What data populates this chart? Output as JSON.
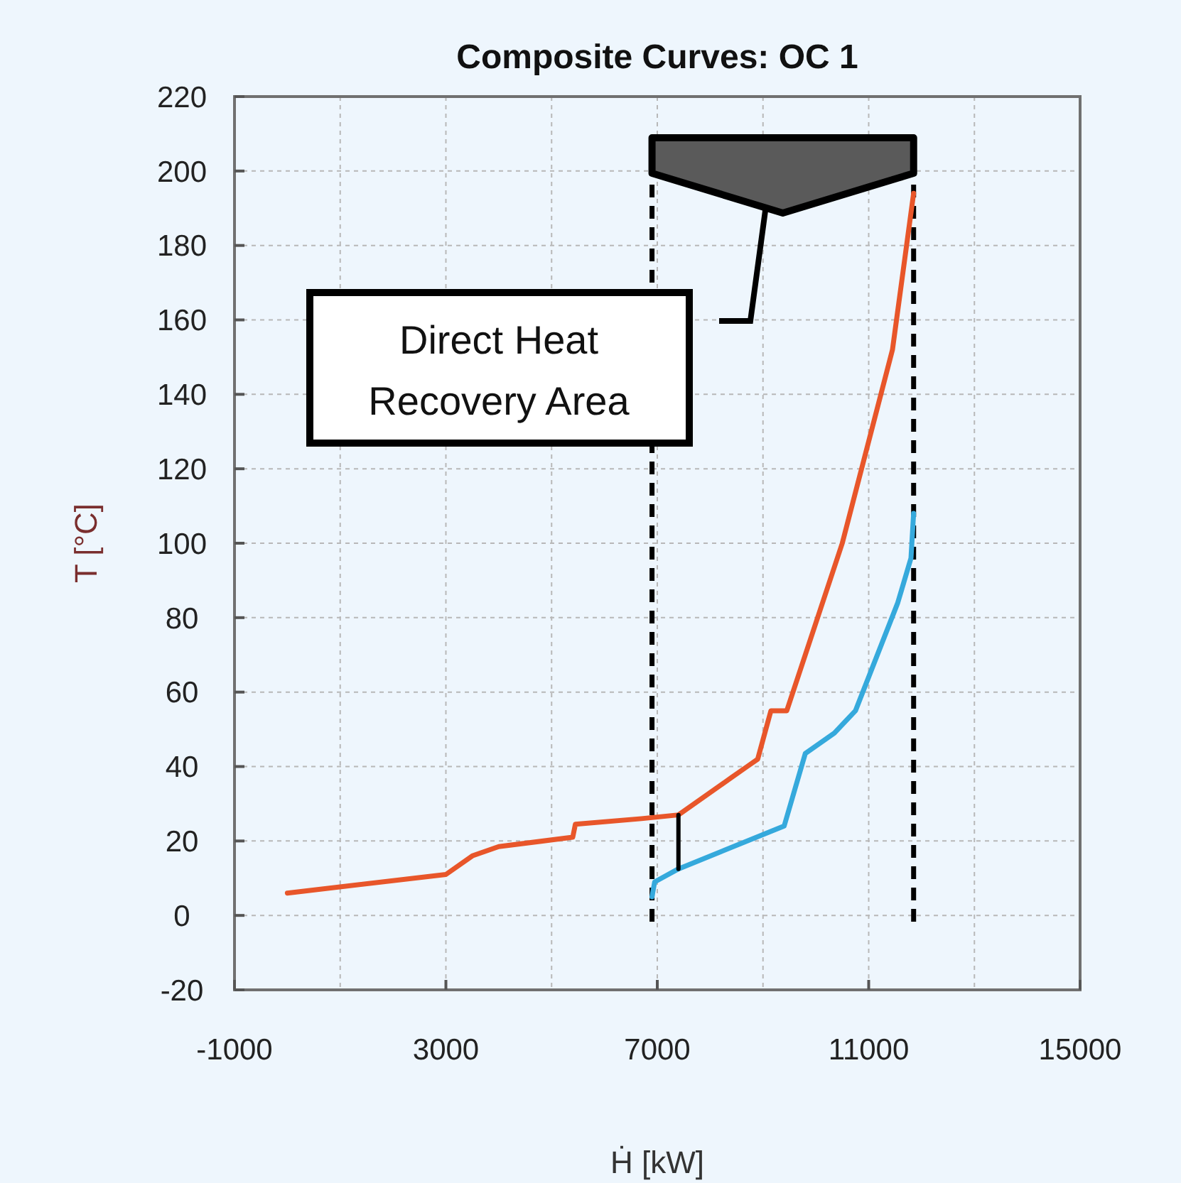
{
  "chart_data": {
    "type": "line",
    "title": "Composite Curves: OC 1",
    "xlabel": "Ḣ [kW]",
    "ylabel": "T [°C]",
    "xlim": [
      -1000,
      15000
    ],
    "xticks": [
      -1000,
      {
        "value": 1000,
        "label": null
      },
      3000,
      {
        "value": 5000,
        "label": null
      },
      7000,
      {
        "value": 9000,
        "label": null
      },
      11000,
      {
        "value": 13000,
        "label": null
      },
      15000
    ],
    "ylim": [
      -20,
      220
    ],
    "yticks": [
      -20,
      0,
      20,
      40,
      60,
      80,
      100,
      120,
      140,
      160,
      180,
      200,
      220
    ],
    "grid": true,
    "marker": "none",
    "line_style": "solid",
    "series": [
      {
        "color": "#e8562a",
        "x": [
          0,
          3000,
          3500,
          4000,
          5400,
          5450,
          6700,
          7400,
          8400,
          8700,
          8900,
          9150,
          9450,
          10500,
          11450,
          11850
        ],
        "values": [
          6,
          11,
          16,
          18.5,
          21,
          24.5,
          26,
          27,
          37,
          40,
          42,
          55,
          55,
          100,
          152,
          194
        ]
      },
      {
        "color": "#35a9dc",
        "x": [
          6900,
          6950,
          7400,
          9400,
          9800,
          10350,
          10750,
          11550,
          11800,
          11850
        ],
        "values": [
          5,
          9,
          12.5,
          24,
          43.5,
          49,
          55,
          84,
          96,
          108
        ]
      },
      {
        "color": "#000000",
        "x": [
          7400,
          7400
        ],
        "values": [
          12.5,
          27
        ]
      }
    ],
    "ref_lines": [
      {
        "axis": "x",
        "value": 6900,
        "color": "#000000",
        "line_style": "dashed"
      },
      {
        "axis": "x",
        "value": 11850,
        "color": "#000000",
        "line_style": "dashed"
      }
    ],
    "annotations": [
      "Direct Heat Recovery Area"
    ]
  }
}
